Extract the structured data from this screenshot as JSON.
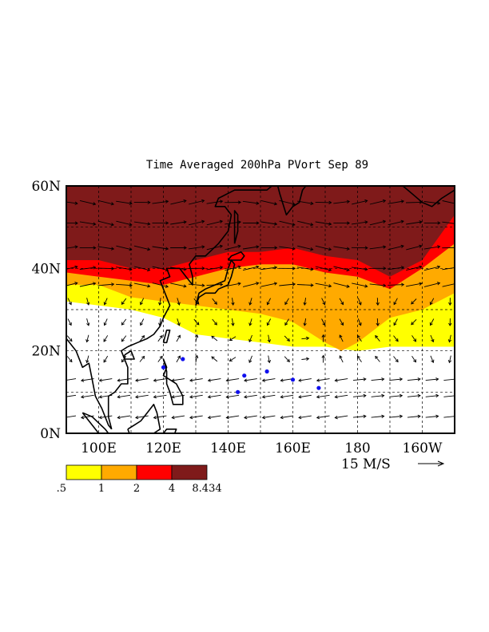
{
  "chart_data": {
    "type": "heatmap",
    "title": "Time Averaged 200hPa PVort Sep 89",
    "x_ticks": [
      "100E",
      "120E",
      "140E",
      "160E",
      "180",
      "160W"
    ],
    "y_ticks": [
      "0N",
      "20N",
      "40N",
      "60N"
    ],
    "xlim_deg_east": [
      90,
      210
    ],
    "ylim_deg_north": [
      0,
      60
    ],
    "grid": true,
    "vector_reference": {
      "label": "15 M/S",
      "value": 15,
      "units": "M/S"
    },
    "colorbar": {
      "labels": [
        ".5",
        "1",
        "2",
        "4",
        "8.434"
      ],
      "bounds": [
        0.5,
        1,
        2,
        4,
        8.434
      ],
      "colors": [
        "#ffff00",
        "#ffaa00",
        "#ff0000",
        "#7f1a1a"
      ]
    },
    "contour_boundaries_deg_north": [
      {
        "level": 0.5,
        "lat": [
          [
            90,
            32
          ],
          [
            100,
            31
          ],
          [
            110,
            30
          ],
          [
            120,
            28
          ],
          [
            130,
            24
          ],
          [
            140,
            23
          ],
          [
            150,
            22
          ],
          [
            160,
            21
          ],
          [
            170,
            21
          ],
          [
            180,
            20
          ],
          [
            190,
            21
          ],
          [
            200,
            21
          ],
          [
            210,
            21
          ]
        ]
      },
      {
        "level": 1,
        "lat": [
          [
            90,
            36
          ],
          [
            100,
            36
          ],
          [
            110,
            33
          ],
          [
            120,
            32
          ],
          [
            130,
            31
          ],
          [
            140,
            30
          ],
          [
            150,
            29
          ],
          [
            160,
            27
          ],
          [
            170,
            22
          ],
          [
            175,
            20
          ],
          [
            180,
            22
          ],
          [
            190,
            28
          ],
          [
            200,
            30
          ],
          [
            210,
            34
          ]
        ]
      },
      {
        "level": 2,
        "lat": [
          [
            90,
            39
          ],
          [
            100,
            38
          ],
          [
            110,
            37
          ],
          [
            120,
            36
          ],
          [
            130,
            38
          ],
          [
            140,
            40
          ],
          [
            150,
            41
          ],
          [
            160,
            41
          ],
          [
            170,
            39
          ],
          [
            180,
            38
          ],
          [
            190,
            35
          ],
          [
            200,
            40
          ],
          [
            210,
            46
          ]
        ]
      },
      {
        "level": 4,
        "lat": [
          [
            90,
            42
          ],
          [
            100,
            42
          ],
          [
            110,
            40
          ],
          [
            120,
            40
          ],
          [
            130,
            42
          ],
          [
            140,
            44
          ],
          [
            150,
            44
          ],
          [
            160,
            45
          ],
          [
            170,
            43
          ],
          [
            180,
            42
          ],
          [
            190,
            38
          ],
          [
            200,
            42
          ],
          [
            210,
            53
          ]
        ]
      }
    ],
    "wind_vector_rows_deg_north": [
      56,
      51,
      45,
      40,
      36,
      32,
      27,
      23,
      18,
      13,
      9,
      4
    ]
  }
}
